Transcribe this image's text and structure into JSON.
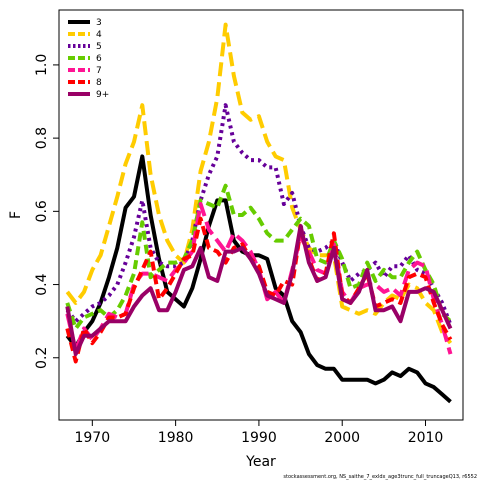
{
  "chart_data": {
    "type": "line",
    "xlabel": "Year",
    "ylabel": "F",
    "xlim": [
      1966,
      2014.5
    ],
    "ylim": [
      0.03,
      1.15
    ],
    "xticks": [
      1970,
      1980,
      1990,
      2000,
      2010
    ],
    "yticks": [
      0.2,
      0.4,
      0.6,
      0.8,
      1.0
    ],
    "xtick_labels": [
      "1970",
      "1980",
      "1990",
      "2000",
      "2010"
    ],
    "ytick_labels": [
      "0.2",
      "0.4",
      "0.6",
      "0.8",
      "1.0"
    ],
    "legend_position": "top-left",
    "grid": false,
    "credit": "stockassessment.org, NS_saithe_7_exldx_age3trunc_full_truncageQ13, r6552",
    "x": [
      1967,
      1968,
      1969,
      1970,
      1971,
      1972,
      1973,
      1974,
      1975,
      1976,
      1977,
      1978,
      1979,
      1980,
      1981,
      1982,
      1983,
      1984,
      1985,
      1986,
      1987,
      1988,
      1989,
      1990,
      1991,
      1992,
      1993,
      1994,
      1995,
      1996,
      1997,
      1998,
      1999,
      2000,
      2001,
      2002,
      2003,
      2004,
      2005,
      2006,
      2007,
      2008,
      2009,
      2010,
      2011,
      2012,
      2013
    ],
    "series": [
      {
        "name": "3",
        "color": "#000000",
        "dash": "solid",
        "values": [
          0.26,
          0.23,
          0.27,
          0.3,
          0.35,
          0.42,
          0.5,
          0.61,
          0.64,
          0.75,
          0.59,
          0.47,
          0.38,
          0.36,
          0.34,
          0.39,
          0.47,
          0.56,
          0.63,
          0.63,
          0.52,
          0.49,
          0.48,
          0.48,
          0.47,
          0.39,
          0.37,
          0.3,
          0.27,
          0.21,
          0.18,
          0.17,
          0.17,
          0.14,
          0.14,
          0.14,
          0.14,
          0.13,
          0.14,
          0.16,
          0.15,
          0.17,
          0.16,
          0.13,
          0.12,
          0.1,
          0.08
        ]
      },
      {
        "name": "4",
        "color": "#ffcc00",
        "dash": "longdash",
        "values": [
          0.38,
          0.35,
          0.38,
          0.44,
          0.48,
          0.56,
          0.64,
          0.73,
          0.79,
          0.89,
          0.7,
          0.59,
          0.52,
          0.48,
          0.46,
          0.55,
          0.71,
          0.79,
          0.91,
          1.11,
          0.97,
          0.87,
          0.85,
          0.86,
          0.79,
          0.75,
          0.74,
          0.61,
          0.55,
          0.5,
          0.48,
          0.48,
          0.48,
          0.34,
          0.33,
          0.32,
          0.33,
          0.32,
          0.35,
          0.37,
          0.36,
          0.4,
          0.39,
          0.35,
          0.33,
          0.27,
          0.24
        ]
      },
      {
        "name": "5",
        "color": "#660099",
        "dash": "dotted",
        "values": [
          0.33,
          0.3,
          0.32,
          0.34,
          0.35,
          0.37,
          0.4,
          0.46,
          0.53,
          0.63,
          0.5,
          0.46,
          0.45,
          0.45,
          0.46,
          0.52,
          0.63,
          0.7,
          0.75,
          0.89,
          0.79,
          0.76,
          0.74,
          0.74,
          0.72,
          0.72,
          0.62,
          0.65,
          0.56,
          0.5,
          0.49,
          0.5,
          0.52,
          0.46,
          0.41,
          0.43,
          0.44,
          0.46,
          0.42,
          0.45,
          0.45,
          0.48,
          0.44,
          0.43,
          0.39,
          0.35,
          0.29
        ]
      },
      {
        "name": "6",
        "color": "#66cc00",
        "dash": "dashed",
        "values": [
          0.35,
          0.28,
          0.31,
          0.32,
          0.33,
          0.31,
          0.33,
          0.37,
          0.43,
          0.57,
          0.42,
          0.44,
          0.46,
          0.46,
          0.47,
          0.52,
          0.63,
          0.62,
          0.61,
          0.67,
          0.59,
          0.59,
          0.61,
          0.58,
          0.54,
          0.52,
          0.52,
          0.55,
          0.58,
          0.56,
          0.47,
          0.46,
          0.52,
          0.47,
          0.39,
          0.4,
          0.46,
          0.41,
          0.44,
          0.42,
          0.42,
          0.46,
          0.49,
          0.44,
          0.4,
          0.32,
          0.3
        ]
      },
      {
        "name": "7",
        "color": "#ff1493",
        "dash": "longdash",
        "values": [
          0.32,
          0.22,
          0.28,
          0.25,
          0.28,
          0.32,
          0.31,
          0.32,
          0.4,
          0.43,
          0.43,
          0.42,
          0.41,
          0.44,
          0.46,
          0.49,
          0.62,
          0.55,
          0.52,
          0.49,
          0.54,
          0.52,
          0.49,
          0.44,
          0.36,
          0.38,
          0.35,
          0.44,
          0.53,
          0.49,
          0.44,
          0.43,
          0.51,
          0.38,
          0.35,
          0.39,
          0.4,
          0.4,
          0.38,
          0.39,
          0.37,
          0.44,
          0.46,
          0.45,
          0.36,
          0.29,
          0.21
        ]
      },
      {
        "name": "8",
        "color": "#ff0000",
        "dash": "dashed",
        "values": [
          0.28,
          0.19,
          0.28,
          0.24,
          0.27,
          0.31,
          0.31,
          0.32,
          0.39,
          0.44,
          0.49,
          0.36,
          0.39,
          0.43,
          0.47,
          0.48,
          0.58,
          0.5,
          0.49,
          0.46,
          0.5,
          0.51,
          0.47,
          0.45,
          0.38,
          0.37,
          0.41,
          0.4,
          0.55,
          0.47,
          0.41,
          0.43,
          0.54,
          0.37,
          0.35,
          0.39,
          0.43,
          0.34,
          0.35,
          0.36,
          0.35,
          0.42,
          0.43,
          0.42,
          0.35,
          0.29,
          0.25
        ]
      },
      {
        "name": "9+",
        "color": "#990066",
        "dash": "solid",
        "values": [
          0.34,
          0.21,
          0.26,
          0.26,
          0.28,
          0.3,
          0.3,
          0.3,
          0.34,
          0.37,
          0.39,
          0.33,
          0.33,
          0.38,
          0.44,
          0.45,
          0.5,
          0.42,
          0.41,
          0.49,
          0.49,
          0.5,
          0.47,
          0.43,
          0.37,
          0.36,
          0.35,
          0.43,
          0.56,
          0.46,
          0.41,
          0.42,
          0.5,
          0.36,
          0.35,
          0.38,
          0.44,
          0.33,
          0.33,
          0.34,
          0.3,
          0.38,
          0.38,
          0.39,
          0.38,
          0.33,
          0.28
        ]
      }
    ]
  }
}
